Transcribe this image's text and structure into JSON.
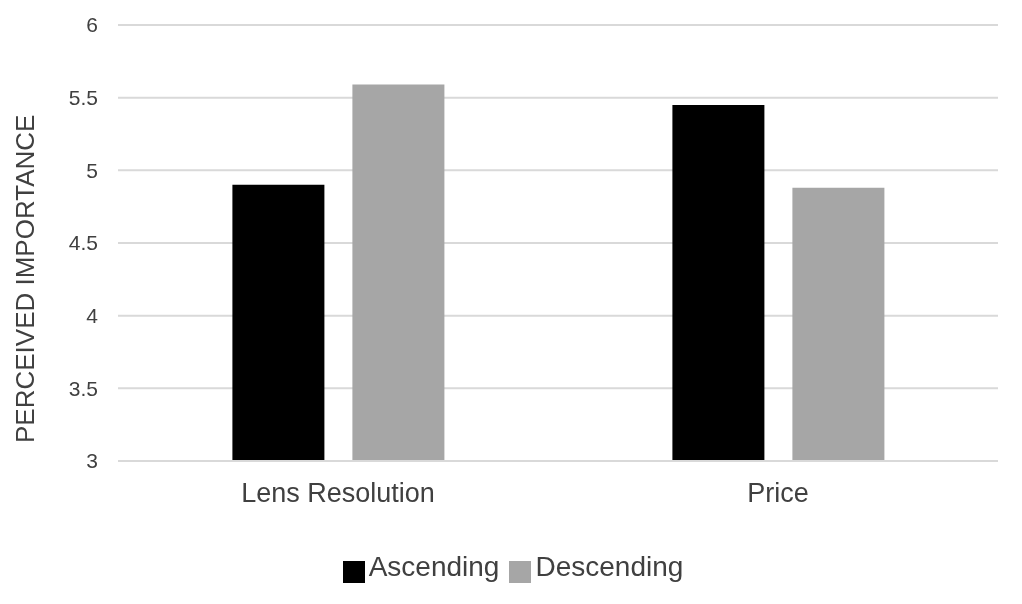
{
  "chart_data": {
    "type": "bar",
    "ylabel": "PERCEIVED IMPORTANCE",
    "categories": [
      "Lens Resolution",
      "Price"
    ],
    "series": [
      {
        "name": "Ascending",
        "color": "#000000",
        "values": [
          4.9,
          5.45
        ]
      },
      {
        "name": "Descending",
        "color": "#a6a6a6",
        "values": [
          5.59,
          4.88
        ]
      }
    ],
    "ylim": [
      3,
      6
    ],
    "yticks": [
      3,
      3.5,
      4,
      4.5,
      5,
      5.5,
      6
    ],
    "grid": "y",
    "legend": "bottom"
  }
}
